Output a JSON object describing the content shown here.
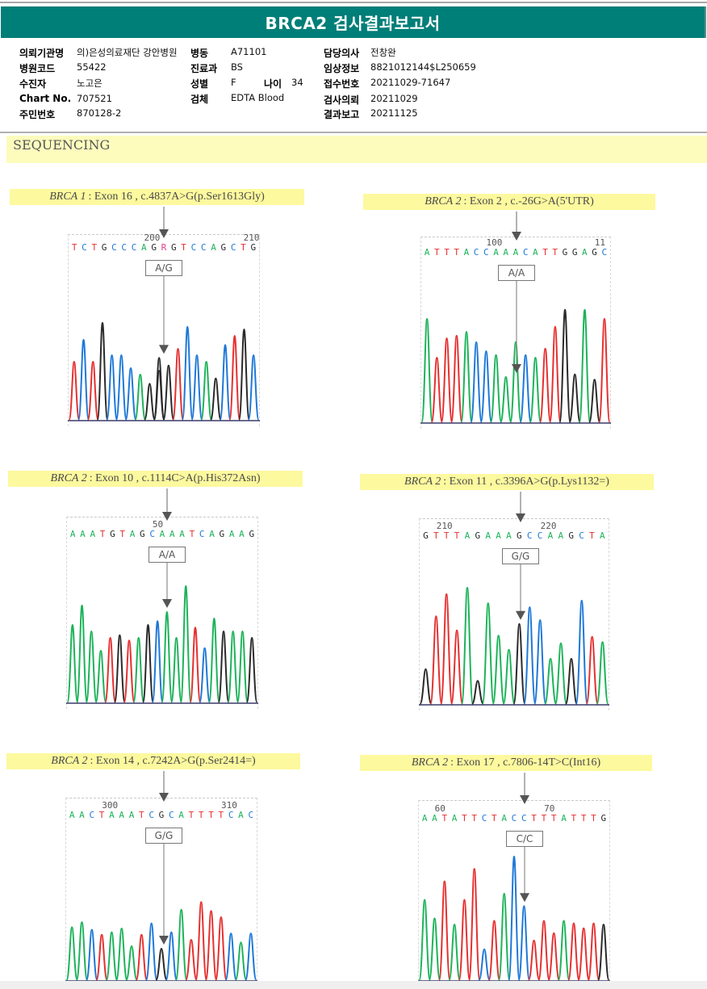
{
  "header": {
    "title": "BRCA2 검사결과보고서"
  },
  "patient_info": {
    "col1": [
      {
        "label": "의뢰기관명",
        "value": "의)은성의료재단 강안병원"
      },
      {
        "label": "병원코드",
        "value": "55422"
      },
      {
        "label": "수진자",
        "value": "노고은"
      },
      {
        "label": "Chart No.",
        "value": "707521"
      },
      {
        "label": "주민번호",
        "value": "870128-2"
      }
    ],
    "col2": [
      {
        "label": "병동",
        "value": "A71101"
      },
      {
        "label": "진료과",
        "value": "BS"
      },
      {
        "label": "성별",
        "value": "F"
      },
      {
        "label": "검체",
        "value": "EDTA Blood"
      }
    ],
    "age": {
      "label": "나이",
      "value": "34"
    },
    "col3": [
      {
        "label": "담당의사",
        "value": "전창완"
      },
      {
        "label": "임상정보",
        "value": "8821012144$L250659"
      },
      {
        "label": "접수번호",
        "value": "20211029-71647"
      },
      {
        "label": "검사의뢰",
        "value": "20211029"
      },
      {
        "label": "결과보고",
        "value": "20211125"
      }
    ]
  },
  "section": {
    "title": "SEQUENCING"
  },
  "colors": {
    "A": "#1db35a",
    "C": "#1e78d8",
    "G": "#2a2a2a",
    "T": "#e63030",
    "R": "#e0408a",
    "header_bg": "#007e78",
    "highlight": "#fdf99e"
  },
  "variants": [
    {
      "gene": "BRCA 1",
      "description": ": Exon 16 , c.4837A>G(p.Ser1613Gly)",
      "sequence": "TCTGCCCAGRGTCCAGCTG",
      "positions": [
        {
          "label": "200",
          "index": 8
        },
        {
          "label": "210",
          "index": 18
        }
      ],
      "genotype": "A/G",
      "call_index": 9,
      "peaks": {
        "bases": "TCTGCCCAGGGTCCAGCTGC",
        "heights": [
          0.45,
          0.62,
          0.45,
          0.75,
          0.5,
          0.5,
          0.4,
          0.35,
          0.28,
          0.48,
          0.42,
          0.55,
          0.72,
          0.5,
          0.45,
          0.32,
          0.58,
          0.65,
          0.7,
          0.5
        ],
        "secondary": {
          "9": {
            "base": "G",
            "h": 0.38
          }
        }
      }
    },
    {
      "gene": "BRCA 2",
      "description": ": Exon 2 , c.-26G>A(5'UTR)",
      "sequence": "ATTTACCAAACATTGGAGC",
      "positions": [
        {
          "label": "100",
          "index": 7
        },
        {
          "label": "11",
          "index": 18
        }
      ],
      "genotype": "A/A",
      "call_index": 8,
      "peaks": {
        "bases": "ATTTACCAAACATTGGAGT",
        "heights": [
          0.8,
          0.5,
          0.65,
          0.67,
          0.7,
          0.62,
          0.55,
          0.52,
          0.35,
          0.62,
          0.52,
          0.5,
          0.57,
          0.74,
          0.87,
          0.37,
          0.87,
          0.33,
          0.8
        ]
      }
    },
    {
      "gene": "BRCA 2",
      "description": ": Exon 10 , c.1114C>A(p.His372Asn)",
      "sequence": "AAATGTAGCAAATCAGAAG",
      "positions": [
        {
          "label": "50",
          "index": 9
        }
      ],
      "genotype": "A/A",
      "call_index": 10,
      "peaks": {
        "bases": "AAAATGTAGCAAATCAGAAG",
        "heights": [
          0.6,
          0.75,
          0.55,
          0.4,
          0.5,
          0.52,
          0.48,
          0.5,
          0.6,
          0.63,
          0.7,
          0.5,
          0.9,
          0.58,
          0.42,
          0.65,
          0.55,
          0.55,
          0.55,
          0.5
        ]
      }
    },
    {
      "gene": "BRCA 2",
      "description": ": Exon 11 , c.3396A>G(p.Lys1132=)",
      "sequence": "GTTTAGAAAGCCAAGCTA",
      "positions": [
        {
          "label": "210",
          "index": 2
        },
        {
          "label": "220",
          "index": 12
        }
      ],
      "genotype": "G/G",
      "call_index": 9,
      "peaks": {
        "bases": "GTTTAGAAAGCCAAGCTA",
        "heights": [
          0.27,
          0.68,
          0.85,
          0.57,
          0.9,
          0.18,
          0.78,
          0.53,
          0.42,
          0.62,
          0.75,
          0.65,
          0.35,
          0.47,
          0.35,
          0.8,
          0.52,
          0.48
        ]
      }
    },
    {
      "gene": "BRCA 2",
      "description": ": Exon 14 , c.7242A>G(p.Ser2414=)",
      "sequence": "AACTAAATCGCATTTTCAC",
      "positions": [
        {
          "label": "300",
          "index": 4
        },
        {
          "label": "310",
          "index": 16
        }
      ],
      "genotype": "G/G",
      "call_index": 9,
      "peaks": {
        "bases": "AACTAAATCGCATTTTCAC",
        "heights": [
          0.42,
          0.46,
          0.4,
          0.36,
          0.38,
          0.41,
          0.27,
          0.36,
          0.45,
          0.25,
          0.38,
          0.56,
          0.32,
          0.62,
          0.55,
          0.5,
          0.37,
          0.3,
          0.37
        ]
      }
    },
    {
      "gene": "BRCA 2",
      "description": ": Exon 17 , c.7806-14T>C(Int16)",
      "sequence": "AATATTCTACCTTTATTTG",
      "positions": [
        {
          "label": "60",
          "index": 2
        },
        {
          "label": "70",
          "index": 13
        }
      ],
      "genotype": "C/C",
      "call_index": 10,
      "peaks": {
        "bases": "AATATTCTACCTTTATTTG",
        "heights": [
          0.65,
          0.5,
          0.8,
          0.45,
          0.65,
          0.9,
          0.25,
          0.48,
          0.7,
          1.0,
          0.6,
          0.32,
          0.48,
          0.38,
          0.48,
          0.46,
          0.42,
          0.46,
          0.45
        ]
      }
    }
  ]
}
